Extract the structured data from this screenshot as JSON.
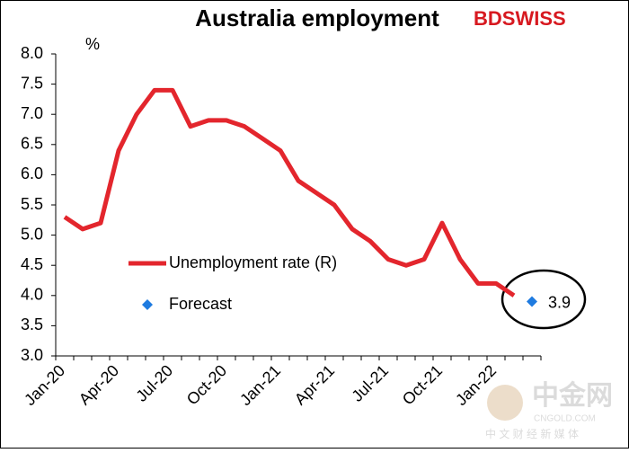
{
  "chart_data": {
    "type": "line",
    "title": "Australia employment",
    "y_label": "%",
    "logo": "BDSWISS",
    "watermark": {
      "name": "中金网",
      "site": "CNGOLD.COM",
      "tagline": "中 文 财 经 新 媒 体"
    },
    "categories": [
      "Jan-20",
      null,
      null,
      "Apr-20",
      null,
      null,
      "Jul-20",
      null,
      null,
      "Oct-20",
      null,
      null,
      "Jan-21",
      null,
      null,
      "Apr-21",
      null,
      null,
      "Jul-21",
      null,
      null,
      "Oct-21",
      null,
      null,
      "Jan-22",
      null,
      null
    ],
    "series": [
      {
        "name": "Unemployment rate (R)",
        "color": "#e3262d",
        "values": [
          5.3,
          5.1,
          5.2,
          6.4,
          7.0,
          7.4,
          7.4,
          6.8,
          6.9,
          6.9,
          6.8,
          6.6,
          6.4,
          5.9,
          5.7,
          5.5,
          5.1,
          4.9,
          4.6,
          4.5,
          4.6,
          5.2,
          4.6,
          4.2,
          4.2,
          4.0,
          null
        ]
      },
      {
        "name": "Forecast",
        "color": "#1e7be0",
        "values": [
          null,
          null,
          null,
          null,
          null,
          null,
          null,
          null,
          null,
          null,
          null,
          null,
          null,
          null,
          null,
          null,
          null,
          null,
          null,
          null,
          null,
          null,
          null,
          null,
          null,
          null,
          3.9
        ]
      }
    ],
    "ylim": [
      3,
      8
    ],
    "yticks": [
      {
        "value": 3,
        "label": "3.0"
      },
      3.5,
      {
        "value": 4,
        "label": "4.0"
      },
      4.5,
      {
        "value": 5,
        "label": "5.0"
      },
      5.5,
      {
        "value": 6,
        "label": "6.0"
      },
      6.5,
      {
        "value": 7,
        "label": "7.0"
      },
      7.5,
      {
        "value": 8,
        "label": "8.0"
      }
    ],
    "grid": false
  }
}
